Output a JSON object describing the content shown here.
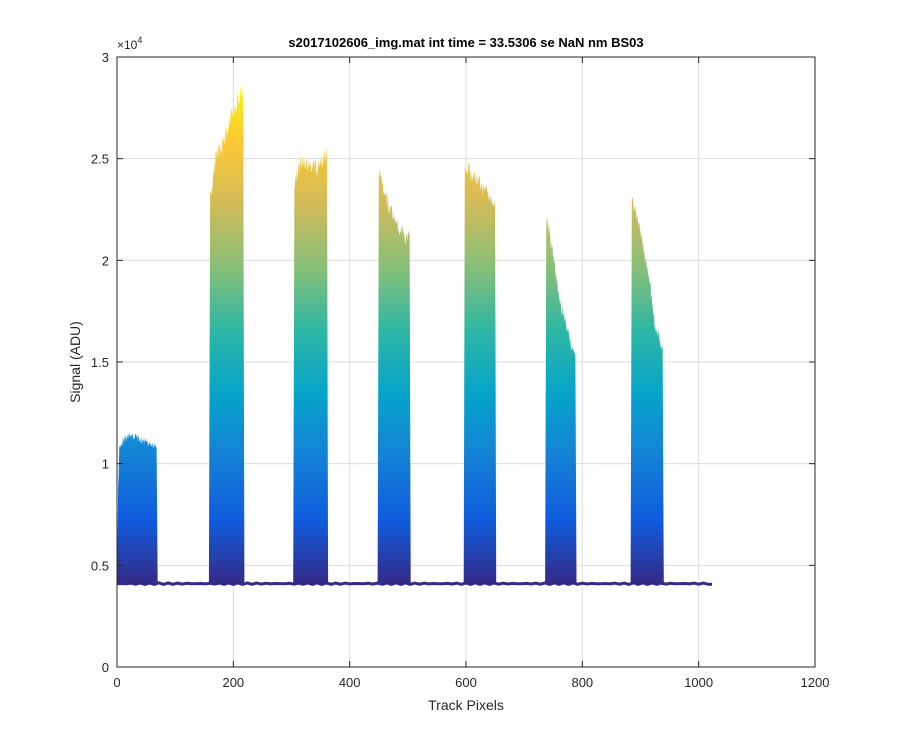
{
  "chart_data": {
    "type": "area",
    "title": "s2017102606_img.mat int time = 33.5306 se  NaN nm BS03",
    "xlabel": "Track Pixels",
    "ylabel": "Signal (ADU)",
    "xlim": [
      0,
      1200
    ],
    "ylim": [
      0,
      30000
    ],
    "xticks": [
      0,
      200,
      400,
      600,
      800,
      1000,
      1200
    ],
    "xtick_labels": [
      "0",
      "200",
      "400",
      "600",
      "800",
      "1000",
      "1200"
    ],
    "yticks": [
      0,
      5000,
      10000,
      15000,
      20000,
      25000,
      30000
    ],
    "ytick_labels": [
      "0",
      "0.5",
      "1",
      "1.5",
      "2",
      "2.5",
      "3"
    ],
    "y_exponent_label": "×10",
    "y_exponent_power": "4",
    "grid": true,
    "colormap": "parula",
    "colormap_stops": [
      "#352a87",
      "#0f5cdd",
      "#1481d6",
      "#06a4ca",
      "#2eb7a4",
      "#87bf77",
      "#d1bb59",
      "#fec832",
      "#f9fb0e"
    ],
    "baseline": 4100,
    "x_end": 1023,
    "blocks": [
      {
        "x_start": 2,
        "x_end": 68,
        "peak_profile": [
          [
            2,
            9000
          ],
          [
            4,
            11000
          ],
          [
            15,
            11500
          ],
          [
            30,
            11600
          ],
          [
            45,
            11300
          ],
          [
            55,
            11200
          ],
          [
            68,
            11000
          ]
        ]
      },
      {
        "x_start": 160,
        "x_end": 217,
        "peak_profile": [
          [
            160,
            23500
          ],
          [
            170,
            25500
          ],
          [
            180,
            26000
          ],
          [
            195,
            27500
          ],
          [
            210,
            28500
          ],
          [
            217,
            28800
          ]
        ]
      },
      {
        "x_start": 305,
        "x_end": 361,
        "peak_profile": [
          [
            305,
            24000
          ],
          [
            315,
            25300
          ],
          [
            330,
            25200
          ],
          [
            345,
            25000
          ],
          [
            355,
            25400
          ],
          [
            361,
            25700
          ]
        ]
      },
      {
        "x_start": 450,
        "x_end": 503,
        "peak_profile": [
          [
            450,
            24800
          ],
          [
            458,
            24000
          ],
          [
            470,
            22800
          ],
          [
            485,
            22000
          ],
          [
            495,
            21500
          ],
          [
            503,
            21500
          ]
        ]
      },
      {
        "x_start": 598,
        "x_end": 650,
        "peak_profile": [
          [
            598,
            25000
          ],
          [
            610,
            24700
          ],
          [
            625,
            24200
          ],
          [
            638,
            23800
          ],
          [
            650,
            23000
          ]
        ]
      },
      {
        "x_start": 738,
        "x_end": 788,
        "peak_profile": [
          [
            738,
            22500
          ],
          [
            745,
            21500
          ],
          [
            755,
            19500
          ],
          [
            765,
            17800
          ],
          [
            775,
            16800
          ],
          [
            788,
            15500
          ]
        ]
      },
      {
        "x_start": 885,
        "x_end": 938,
        "peak_profile": [
          [
            885,
            23300
          ],
          [
            895,
            22500
          ],
          [
            905,
            21000
          ],
          [
            915,
            19500
          ],
          [
            925,
            17000
          ],
          [
            938,
            16000
          ]
        ]
      }
    ]
  }
}
